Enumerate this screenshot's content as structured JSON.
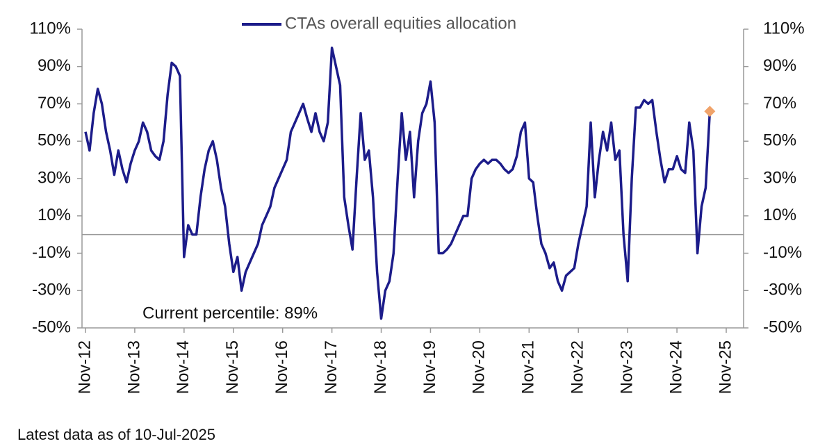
{
  "chart_data": {
    "type": "line",
    "legend_text": "CTAs overall equities allocation",
    "annotation": "Current percentile: 89%",
    "footnote": "Latest data as of 10-Jul-2025",
    "categories": [
      "Nov-12",
      null,
      null,
      null,
      null,
      null,
      null,
      null,
      null,
      null,
      null,
      null,
      "Nov-13",
      null,
      null,
      null,
      null,
      null,
      null,
      null,
      null,
      null,
      null,
      null,
      "Nov-14",
      null,
      null,
      null,
      null,
      null,
      null,
      null,
      null,
      null,
      null,
      null,
      "Nov-15",
      null,
      null,
      null,
      null,
      null,
      null,
      null,
      null,
      null,
      null,
      null,
      "Nov-16",
      null,
      null,
      null,
      null,
      null,
      null,
      null,
      null,
      null,
      null,
      null,
      "Nov-17",
      null,
      null,
      null,
      null,
      null,
      null,
      null,
      null,
      null,
      null,
      null,
      "Nov-18",
      null,
      null,
      null,
      null,
      null,
      null,
      null,
      null,
      null,
      null,
      null,
      "Nov-19",
      null,
      null,
      null,
      null,
      null,
      null,
      null,
      null,
      null,
      null,
      null,
      "Nov-20",
      null,
      null,
      null,
      null,
      null,
      null,
      null,
      null,
      null,
      null,
      null,
      "Nov-21",
      null,
      null,
      null,
      null,
      null,
      null,
      null,
      null,
      null,
      null,
      null,
      "Nov-22",
      null,
      null,
      null,
      null,
      null,
      null,
      null,
      null,
      null,
      null,
      null,
      "Nov-23",
      null,
      null,
      null,
      null,
      null,
      null,
      null,
      null,
      null,
      null,
      null,
      "Nov-24",
      null,
      null,
      null,
      null,
      null,
      null,
      null,
      null,
      null,
      null,
      null,
      "Nov-25"
    ],
    "series": [
      {
        "name": "CTAs overall equities allocation",
        "color": "#1c1c8a",
        "marker_color": "#f0a36a",
        "values": [
          55,
          45,
          65,
          78,
          70,
          55,
          45,
          32,
          45,
          35,
          28,
          38,
          45,
          50,
          60,
          55,
          45,
          42,
          40,
          50,
          75,
          92,
          90,
          85,
          -12,
          5,
          0,
          0,
          20,
          35,
          45,
          50,
          40,
          25,
          15,
          -5,
          -20,
          -12,
          -30,
          -20,
          -15,
          -10,
          -5,
          5,
          10,
          15,
          25,
          30,
          35,
          40,
          55,
          60,
          65,
          70,
          62,
          55,
          65,
          55,
          50,
          60,
          100,
          90,
          80,
          20,
          5,
          -8,
          30,
          65,
          40,
          45,
          20,
          -20,
          -45,
          -30,
          -25,
          -10,
          30,
          65,
          40,
          55,
          20,
          50,
          65,
          70,
          82,
          60,
          -10,
          -10,
          -8,
          -5,
          0,
          5,
          10,
          10,
          30,
          35,
          38,
          40,
          38,
          40,
          40,
          38,
          35,
          33,
          35,
          42,
          55,
          60,
          30,
          28,
          10,
          -5,
          -10,
          -18,
          -15,
          -25,
          -30,
          -22,
          -20,
          -18,
          -5,
          5,
          15,
          60,
          20,
          40,
          55,
          45,
          60,
          40,
          45,
          0,
          -25,
          30,
          68,
          68,
          72,
          70,
          72,
          55,
          40,
          28,
          35,
          35,
          42,
          35,
          33,
          60,
          45,
          -10,
          15,
          25,
          66,
          null,
          null,
          null,
          null
        ]
      }
    ],
    "ylim": [
      -50,
      110
    ],
    "yticks": [
      {
        "value": -50,
        "label": "-50%"
      },
      {
        "value": -30,
        "label": "-30%"
      },
      {
        "value": -10,
        "label": "-10%"
      },
      {
        "value": 10,
        "label": "10%"
      },
      {
        "value": 30,
        "label": "30%"
      },
      {
        "value": 50,
        "label": "50%"
      },
      {
        "value": 70,
        "label": "70%"
      },
      {
        "value": 90,
        "label": "90%"
      },
      {
        "value": 110,
        "label": "110%"
      }
    ],
    "y2lim": [
      -50,
      110
    ],
    "y2ticks": [
      {
        "value": -50,
        "label": "-50%"
      },
      {
        "value": -30,
        "label": "-30%"
      },
      {
        "value": -10,
        "label": "-10%"
      },
      {
        "value": 10,
        "label": "10%"
      },
      {
        "value": 30,
        "label": "30%"
      },
      {
        "value": 50,
        "label": "50%"
      },
      {
        "value": 70,
        "label": "70%"
      },
      {
        "value": 90,
        "label": "90%"
      },
      {
        "value": 110,
        "label": "110%"
      }
    ],
    "grid": false
  }
}
